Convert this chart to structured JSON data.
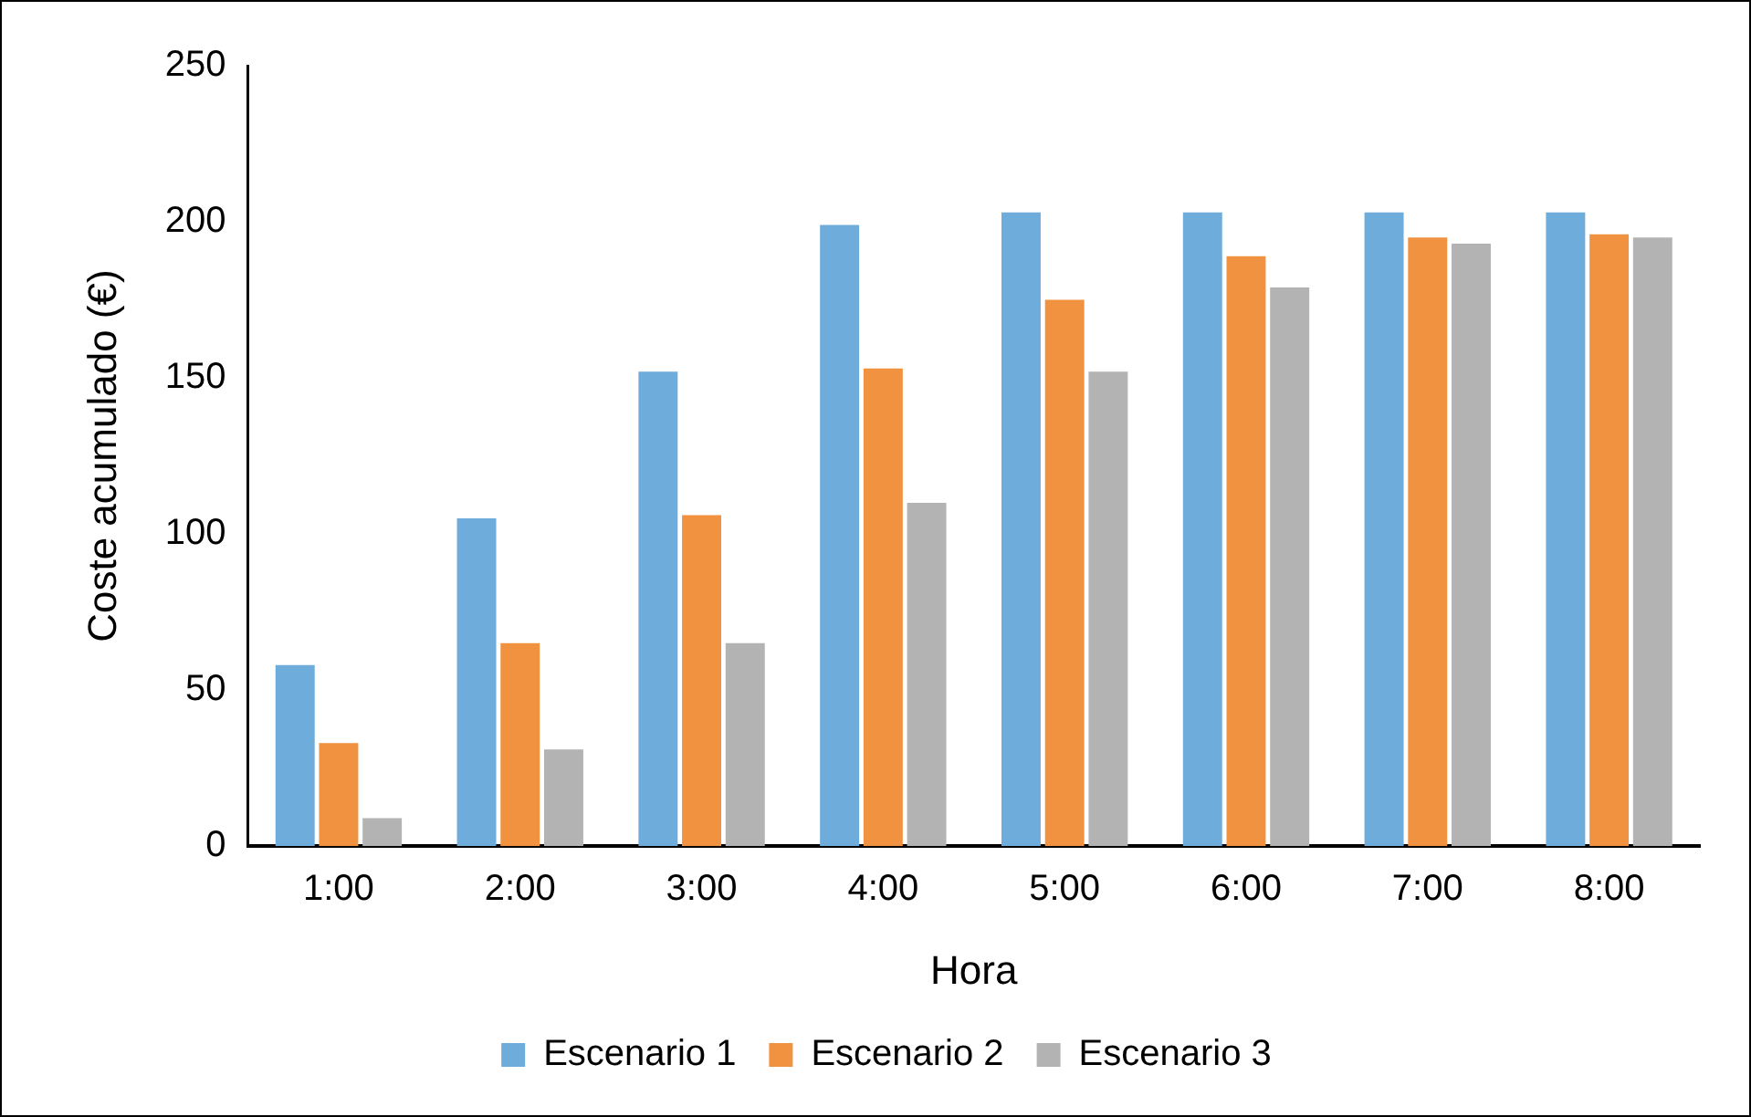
{
  "chart_data": {
    "type": "bar",
    "xlabel": "Hora",
    "ylabel": "Coste acumulado (€)",
    "categories": [
      "1:00",
      "2:00",
      "3:00",
      "4:00",
      "5:00",
      "6:00",
      "7:00",
      "8:00"
    ],
    "series": [
      {
        "name": "Escenario 1",
        "color": "#6eacdc",
        "values": [
          58,
          105,
          152,
          199,
          203,
          203,
          203,
          203
        ]
      },
      {
        "name": "Escenario 2",
        "color": "#f19240",
        "values": [
          33,
          65,
          106,
          153,
          175,
          189,
          195,
          196
        ]
      },
      {
        "name": "Escenario 3",
        "color": "#b3b3b3",
        "values": [
          9,
          31,
          65,
          110,
          152,
          179,
          193,
          195
        ]
      }
    ],
    "ylim": [
      0,
      250
    ],
    "yticks": [
      0,
      50,
      100,
      150,
      200,
      250
    ],
    "grid": false,
    "legend": "bottom"
  }
}
